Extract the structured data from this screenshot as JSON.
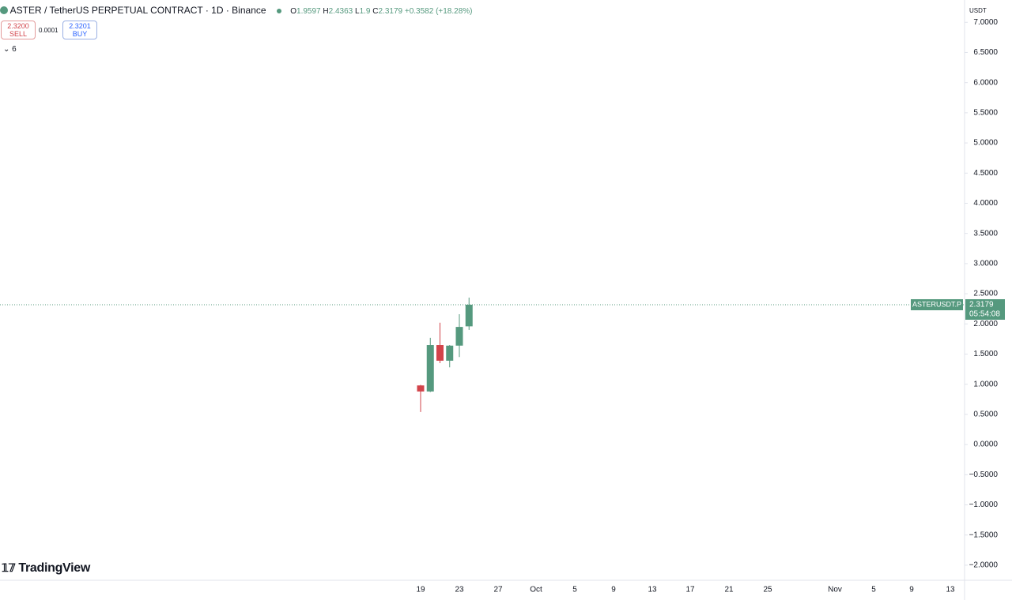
{
  "header": {
    "symbol": "ASTER / TetherUS PERPETUAL CONTRACT · 1D · Binance",
    "ohlc_labels": [
      "O",
      "H",
      "L",
      "C"
    ],
    "change": "+0.3582 (+18.28%)",
    "sell_price": "2.3200",
    "sell_label": "SELL",
    "spread": "0.0001",
    "buy_price": "2.3201",
    "buy_label": "BUY",
    "indicator_count": "6",
    "currency": "USDT",
    "logo": "TradingView"
  },
  "chart_data": {
    "type": "candlestick",
    "symbol_tag": "ASTERUSDT.P",
    "countdown": "05:54:08",
    "open": [
      0.98,
      0.88,
      1.65,
      1.39,
      1.64,
      1.9597
    ],
    "high": [
      0.99,
      1.77,
      2.02,
      1.65,
      2.16,
      2.4363
    ],
    "low": [
      0.54,
      0.87,
      1.35,
      1.28,
      1.45,
      1.9
    ],
    "close": [
      0.88,
      1.65,
      1.39,
      1.64,
      1.95,
      2.3179
    ],
    "up_color": "#55997e",
    "down_color": "#d2434a",
    "time_labels": [
      "19",
      "23",
      "27",
      "Oct",
      "5",
      "9",
      "13",
      "17",
      "21",
      "25",
      "Nov",
      "5",
      "9",
      "13"
    ],
    "ylim": [
      -2.25,
      7.37
    ],
    "yticks": [
      {
        "value": 7,
        "label": "7.0000"
      },
      {
        "value": 6.5,
        "label": "6.5000"
      },
      {
        "value": 6,
        "label": "6.0000"
      },
      {
        "value": 5.5,
        "label": "5.5000"
      },
      {
        "value": 5,
        "label": "5.0000"
      },
      {
        "value": 4.5,
        "label": "4.5000"
      },
      {
        "value": 4,
        "label": "4.0000"
      },
      {
        "value": 3.5,
        "label": "3.5000"
      },
      {
        "value": 3,
        "label": "3.0000"
      },
      {
        "value": 2.5,
        "label": "2.5000"
      },
      {
        "value": 2,
        "label": "2.0000"
      },
      {
        "value": 1.5,
        "label": "1.5000"
      },
      {
        "value": 1,
        "label": "1.0000"
      },
      {
        "value": 0.5,
        "label": "0.5000"
      },
      {
        "value": 0,
        "label": "0.0000"
      },
      {
        "value": -0.5,
        "label": "−0.5000"
      },
      {
        "value": -1,
        "label": "−1.0000"
      },
      {
        "value": -1.5,
        "label": "−1.5000"
      },
      {
        "value": -2,
        "label": "−2.0000"
      }
    ]
  }
}
